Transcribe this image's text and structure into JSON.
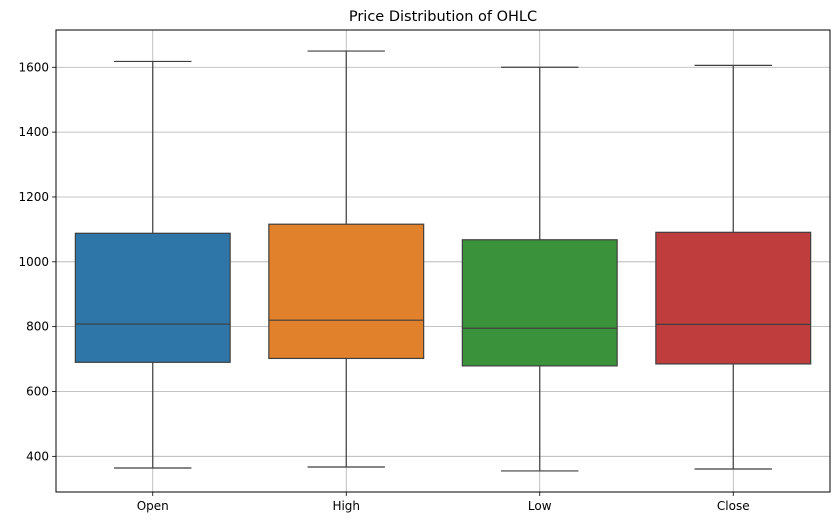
{
  "chart_data": {
    "type": "box",
    "title": "Price Distribution of OHLC",
    "xlabel": "",
    "ylabel": "",
    "categories": [
      "Open",
      "High",
      "Low",
      "Close"
    ],
    "ylim": [
      290,
      1715
    ],
    "yticks": [
      400,
      600,
      800,
      1000,
      1200,
      1400,
      1600
    ],
    "ytick_labels": [
      "400",
      "600",
      "800",
      "1000",
      "1200",
      "1400",
      "1600"
    ],
    "grid": true,
    "series": [
      {
        "name": "Open",
        "color": "#2e75a8",
        "whisker_low": 364,
        "q1": 690,
        "median": 808,
        "q3": 1088,
        "whisker_high": 1618
      },
      {
        "name": "High",
        "color": "#e1812c",
        "whisker_low": 367,
        "q1": 702,
        "median": 820,
        "q3": 1116,
        "whisker_high": 1650
      },
      {
        "name": "Low",
        "color": "#3a923a",
        "whisker_low": 355,
        "q1": 679,
        "median": 795,
        "q3": 1068,
        "whisker_high": 1600
      },
      {
        "name": "Close",
        "color": "#c03d3e",
        "whisker_low": 361,
        "q1": 685,
        "median": 807,
        "q3": 1091,
        "whisker_high": 1606
      }
    ]
  }
}
